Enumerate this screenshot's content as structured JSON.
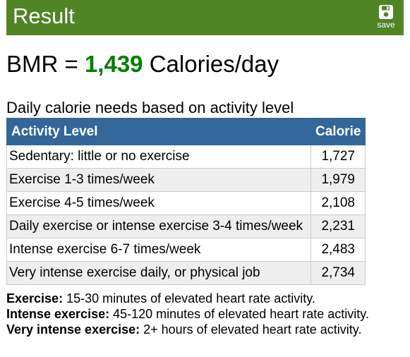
{
  "header": {
    "title": "Result",
    "save_label": "save"
  },
  "bmr": {
    "prefix": "BMR = ",
    "value": "1,439",
    "suffix": " Calories/day"
  },
  "table": {
    "caption": "Daily calorie needs based on activity level",
    "headers": [
      "Activity Level",
      "Calorie"
    ],
    "rows": [
      {
        "level": "Sedentary: little or no exercise",
        "calorie": "1,727"
      },
      {
        "level": "Exercise 1-3 times/week",
        "calorie": "1,979"
      },
      {
        "level": "Exercise 4-5 times/week",
        "calorie": "2,108"
      },
      {
        "level": "Daily exercise or intense exercise 3-4 times/week",
        "calorie": "2,231"
      },
      {
        "level": "Intense exercise 6-7 times/week",
        "calorie": "2,483"
      },
      {
        "level": "Very intense exercise daily, or physical job",
        "calorie": "2,734"
      }
    ]
  },
  "notes": [
    {
      "term": "Exercise:",
      "text": " 15-30 minutes of elevated heart rate activity."
    },
    {
      "term": "Intense exercise:",
      "text": " 45-120 minutes of elevated heart rate activity."
    },
    {
      "term": "Very intense exercise:",
      "text": " 2+ hours of elevated heart rate activity."
    }
  ],
  "colors": {
    "header_bg": "#518425",
    "bmr_value": "#008000",
    "table_header_bg": "#336699",
    "row_alt_bg": "#eeeeee"
  },
  "icons": {
    "save": "floppy-disk-icon"
  }
}
